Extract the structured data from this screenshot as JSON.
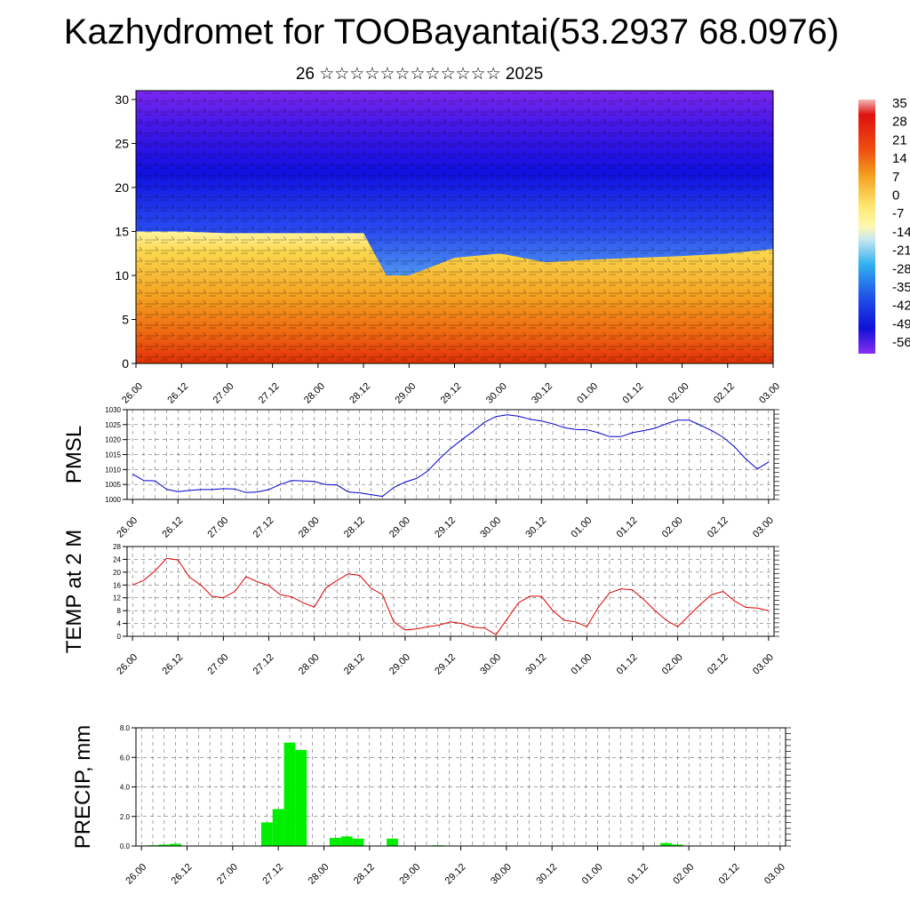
{
  "title": "Kazhydromet for TOOBayantai(53.2937 68.0976)",
  "subtitle": "26 ☆☆☆☆☆☆☆☆☆☆☆☆ 2025",
  "colors": {
    "pmsl_line": "#0000cc",
    "temp_line": "#dd0000",
    "precip_bar": "#00ee00",
    "grid": "#000000"
  },
  "chart_data": [
    {
      "id": "cross-section",
      "type": "heatmap",
      "title": "",
      "xlabel": "",
      "ylabel": "",
      "x_ticks": [
        "26.00",
        "26.12",
        "27.00",
        "27.12",
        "28.00",
        "28.12",
        "29.00",
        "29.12",
        "30.00",
        "30.12",
        "01.00",
        "01.12",
        "02.00",
        "02.12",
        "03.00"
      ],
      "y_ticks": [
        0,
        5,
        10,
        15,
        20,
        25,
        30
      ],
      "ylim": [
        0,
        31
      ],
      "colorbar": {
        "labels": [
          "35",
          "28",
          "21",
          "14",
          "7",
          "0",
          "-7",
          "-14",
          "-21",
          "-28",
          "-35",
          "-42",
          "-49",
          "-56"
        ],
        "range": [
          -60,
          35
        ]
      },
      "surface_temperature_profile": {
        "x": [
          0,
          1,
          2,
          3,
          4,
          5,
          5.5,
          6,
          7,
          8,
          9,
          10,
          11,
          12,
          13,
          14
        ],
        "warm_layer_top_km": [
          15,
          15,
          14.8,
          14.8,
          14.8,
          14.8,
          10,
          10,
          12,
          12.5,
          11.5,
          11.8,
          12,
          12.2,
          12.5,
          13
        ]
      }
    },
    {
      "id": "pmsl",
      "type": "line",
      "ylabel": "PMSL",
      "ylim": [
        1000,
        1030
      ],
      "y_ticks": [
        "1000",
        "1005",
        "1010",
        "1015",
        "1020",
        "1025",
        "1030"
      ],
      "x_ticks": [
        "26.00",
        "26.12",
        "27.00",
        "27.12",
        "28.00",
        "28.12",
        "29.00",
        "29.12",
        "30.00",
        "30.12",
        "01.00",
        "01.12",
        "02.00",
        "02.12",
        "03.00"
      ],
      "x": [
        0,
        0.25,
        0.5,
        0.75,
        1,
        1.25,
        1.5,
        1.75,
        2,
        2.25,
        2.5,
        2.75,
        3,
        3.25,
        3.5,
        3.75,
        4,
        4.25,
        4.5,
        4.75,
        5,
        5.25,
        5.5,
        5.75,
        6,
        6.25,
        6.5,
        6.75,
        7,
        7.25,
        7.5,
        7.75,
        8,
        8.25,
        8.5,
        8.75,
        9,
        9.25,
        9.5,
        9.75,
        10,
        10.25,
        10.5,
        10.75,
        11,
        11.25,
        11.5,
        11.75,
        12,
        12.25,
        12.5,
        12.75,
        13,
        13.25,
        13.5,
        13.75,
        14
      ],
      "values": [
        1008.5,
        1006.3,
        1006.2,
        1003.4,
        1002.6,
        1003.0,
        1003.3,
        1003.3,
        1003.6,
        1003.5,
        1002.3,
        1002.5,
        1003.3,
        1005.0,
        1006.3,
        1006.2,
        1006.0,
        1005.0,
        1004.8,
        1002.5,
        1002.2,
        1001.6,
        1001.0,
        1004.0,
        1005.8,
        1007.0,
        1009.5,
        1013.5,
        1017.0,
        1020.0,
        1022.8,
        1025.8,
        1027.7,
        1028.3,
        1027.8,
        1026.8,
        1026.2,
        1025.3,
        1024.0,
        1023.4,
        1023.3,
        1022.3,
        1021.0,
        1021.0,
        1022.3,
        1023.0,
        1023.8,
        1025.3,
        1026.5,
        1026.5,
        1024.8,
        1023.0,
        1020.8,
        1017.6,
        1013.5,
        1010.2,
        1012.5
      ]
    },
    {
      "id": "temp",
      "type": "line",
      "ylabel": "TEMP at 2 M",
      "ylim": [
        0,
        28
      ],
      "y_ticks": [
        "0",
        "4",
        "8",
        "12",
        "16",
        "20",
        "24",
        "28"
      ],
      "x_ticks": [
        "26.00",
        "26.12",
        "27.00",
        "27.12",
        "28.00",
        "28.12",
        "29.00",
        "29.12",
        "30.00",
        "30.12",
        "01.00",
        "01.12",
        "02.00",
        "02.12",
        "03.00"
      ],
      "x": [
        0,
        0.25,
        0.5,
        0.75,
        1,
        1.25,
        1.5,
        1.75,
        2,
        2.25,
        2.5,
        2.75,
        3,
        3.25,
        3.5,
        3.75,
        4,
        4.25,
        4.5,
        4.75,
        5,
        5.25,
        5.5,
        5.75,
        6,
        6.25,
        6.5,
        6.75,
        7,
        7.25,
        7.5,
        7.75,
        8,
        8.25,
        8.5,
        8.75,
        9,
        9.25,
        9.5,
        9.75,
        10,
        10.25,
        10.5,
        10.75,
        11,
        11.25,
        11.5,
        11.75,
        12,
        12.25,
        12.5,
        12.75,
        13,
        13.25,
        13.5,
        13.75,
        14
      ],
      "values": [
        16.0,
        17.5,
        20.5,
        24.3,
        23.8,
        18.5,
        16.0,
        12.5,
        12.0,
        14.0,
        18.6,
        17.0,
        15.8,
        13.0,
        12.3,
        10.5,
        9.1,
        15.0,
        17.4,
        19.5,
        19.0,
        15.0,
        13.0,
        4.5,
        2.0,
        2.3,
        3.0,
        3.5,
        4.5,
        4.0,
        2.8,
        2.6,
        0.5,
        5.5,
        10.5,
        12.5,
        12.5,
        8.0,
        5.0,
        4.5,
        3.0,
        9.0,
        13.5,
        14.8,
        14.5,
        11.5,
        8.0,
        5.0,
        3.0,
        6.5,
        10.0,
        13.0,
        14.0,
        11.0,
        9.0,
        8.8,
        8.0
      ]
    },
    {
      "id": "precip",
      "type": "bar",
      "ylabel": "PRECIP, mm",
      "ylim": [
        0,
        8
      ],
      "y_ticks": [
        "0.0",
        "2.0",
        "4.0",
        "6.0",
        "8.0"
      ],
      "x_ticks": [
        "26.00",
        "26.12",
        "27.00",
        "27.12",
        "28.00",
        "28.12",
        "29.00",
        "29.12",
        "30.00",
        "30.12",
        "01.00",
        "01.12",
        "02.00",
        "02.12",
        "03.00"
      ],
      "x": [
        0.25,
        0.5,
        0.75,
        2.75,
        3.0,
        3.25,
        3.5,
        4.25,
        4.5,
        4.75,
        5.5,
        6.5,
        11.5,
        11.75
      ],
      "values": [
        0.05,
        0.1,
        0.15,
        1.6,
        2.5,
        7.0,
        6.5,
        0.55,
        0.65,
        0.5,
        0.5,
        0.05,
        0.2,
        0.1
      ]
    }
  ]
}
